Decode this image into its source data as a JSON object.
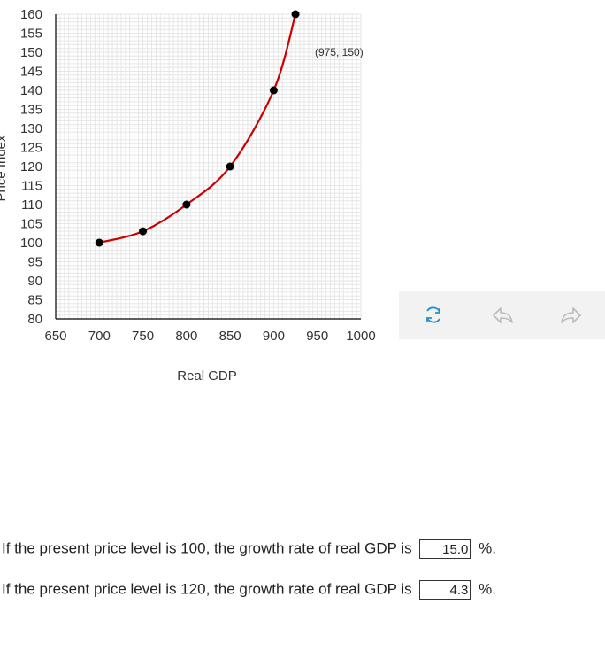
{
  "chart_data": {
    "type": "line",
    "xlabel": "Real GDP",
    "ylabel": "Price Index",
    "xlim": [
      650,
      1000
    ],
    "ylim": [
      80,
      160
    ],
    "x_ticks": [
      "650",
      "700",
      "750",
      "800",
      "850",
      "900",
      "950",
      "1000"
    ],
    "y_ticks": [
      "80",
      "85",
      "90",
      "95",
      "100",
      "105",
      "110",
      "115",
      "120",
      "125",
      "130",
      "135",
      "140",
      "145",
      "150",
      "155",
      "160"
    ],
    "grid": true,
    "series": [
      {
        "x": [
          700,
          750,
          800,
          850,
          900,
          925
        ],
        "y": [
          100,
          103,
          110,
          120,
          140,
          160
        ],
        "color": "#cc0000",
        "marker_color": "#000000"
      }
    ],
    "annotations": [
      {
        "text": "(975, 150)",
        "x": 975,
        "y": 150
      }
    ]
  },
  "toolbar": {
    "items": [
      {
        "icon": "reset-icon",
        "color": "#1f8fd6"
      },
      {
        "icon": "undo-icon",
        "color": "#bbbbbb"
      },
      {
        "icon": "redo-icon",
        "color": "#bbbbbb"
      }
    ]
  },
  "questions": [
    {
      "before": "If the present price level is 100, the growth rate of real GDP is",
      "value": "15.0",
      "after": "%."
    },
    {
      "before": "If the present price level is 120, the growth rate of real GDP is",
      "value": "4.3",
      "after": "%."
    }
  ]
}
